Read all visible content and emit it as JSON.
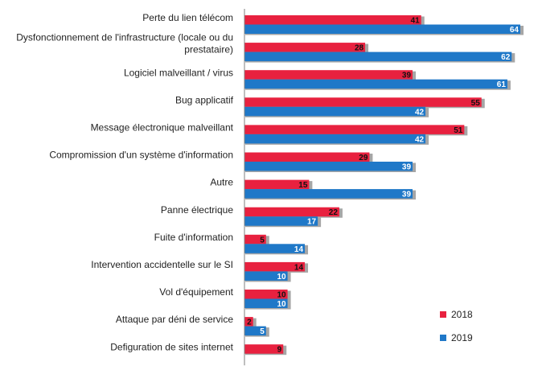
{
  "chart_data": {
    "type": "bar",
    "orientation": "horizontal",
    "categories": [
      [
        "Perte du lien télécom"
      ],
      [
        "Dysfonctionnement de l'infrastructure (locale ou du",
        "prestataire)"
      ],
      [
        "Logiciel malveillant / virus"
      ],
      [
        "Bug applicatif"
      ],
      [
        "Message électronique malveillant"
      ],
      [
        "Compromission d'un système d'information"
      ],
      [
        "Autre"
      ],
      [
        "Panne électrique"
      ],
      [
        "Fuite d'information"
      ],
      [
        "Intervention accidentelle sur le SI"
      ],
      [
        "Vol d'équipement"
      ],
      [
        "Attaque par déni de service"
      ],
      [
        "Defiguration de sites internet"
      ]
    ],
    "series": [
      {
        "name": "2018",
        "color": "#e8213f",
        "values": [
          41,
          28,
          39,
          55,
          51,
          29,
          15,
          22,
          5,
          14,
          10,
          2,
          9
        ]
      },
      {
        "name": "2019",
        "color": "#1f78c8",
        "values": [
          64,
          62,
          61,
          42,
          42,
          39,
          39,
          17,
          14,
          10,
          10,
          5,
          null
        ]
      }
    ],
    "xlim": [
      0,
      64
    ],
    "grid": false,
    "legend": "right",
    "title": "",
    "xlabel": "",
    "ylabel": ""
  }
}
